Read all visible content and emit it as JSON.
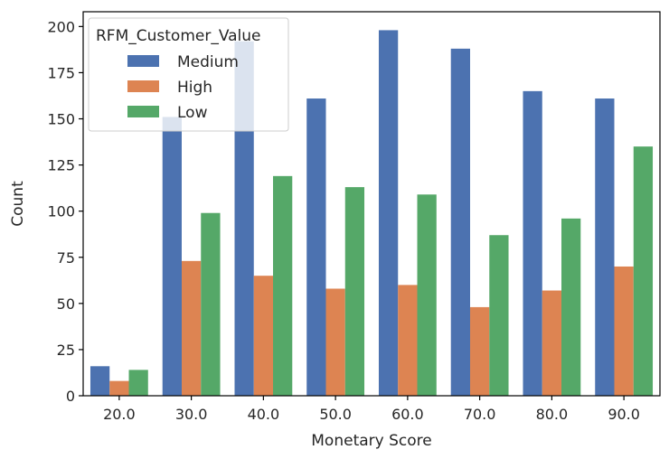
{
  "chart_data": {
    "type": "bar",
    "title": "",
    "xlabel": "Monetary Score",
    "ylabel": "Count",
    "categories": [
      "20.0",
      "30.0",
      "40.0",
      "50.0",
      "60.0",
      "70.0",
      "80.0",
      "90.0"
    ],
    "series": [
      {
        "name": "Medium",
        "color": "#4c72b0",
        "values": [
          16,
          151,
          192,
          161,
          198,
          188,
          165,
          161
        ]
      },
      {
        "name": "High",
        "color": "#dd8452",
        "values": [
          8,
          73,
          65,
          58,
          60,
          48,
          57,
          70
        ]
      },
      {
        "name": "Low",
        "color": "#55a868",
        "values": [
          14,
          99,
          119,
          113,
          109,
          87,
          96,
          135
        ]
      }
    ],
    "ylim": [
      0,
      208
    ],
    "yticks": [
      0,
      25,
      50,
      75,
      100,
      125,
      150,
      175,
      200
    ],
    "grid": false,
    "legend": {
      "title": "RFM_Customer_Value",
      "placement": "top-left"
    }
  }
}
